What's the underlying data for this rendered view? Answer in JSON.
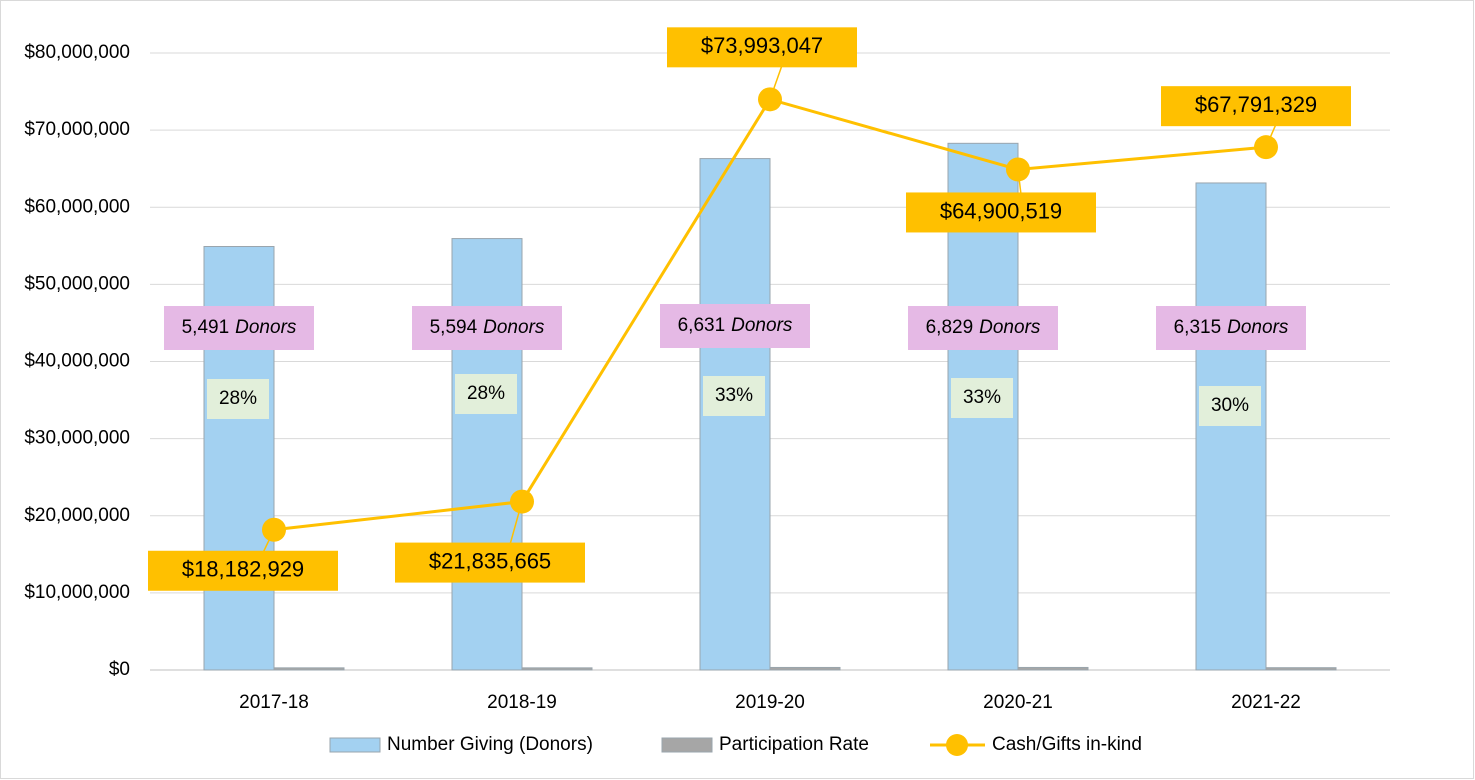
{
  "chart_data": {
    "type": "bar-line",
    "categories": [
      "2017-18",
      "2018-19",
      "2019-20",
      "2020-21",
      "2021-22"
    ],
    "series": [
      {
        "name": "Number Giving (Donors)",
        "type": "bar",
        "axis": "y2",
        "color": "#a3d1f1",
        "values": [
          5491,
          5594,
          6631,
          6829,
          6315
        ],
        "value_labels": [
          "5,491",
          "5,594",
          "6,631",
          "6,829",
          "6,315"
        ],
        "label_unit": "Donors"
      },
      {
        "name": "Participation Rate",
        "type": "bar",
        "axis": "y2",
        "color": "#a6a6a6",
        "values": [
          28,
          28,
          33,
          33,
          30
        ],
        "value_labels": [
          "28%",
          "28%",
          "33%",
          "33%",
          "30%"
        ]
      },
      {
        "name": "Cash/Gifts in-kind",
        "type": "line",
        "color": "#ffc000",
        "values": [
          18182929,
          21835665,
          73993047,
          64900519,
          67791329
        ],
        "value_labels": [
          "$18,182,929",
          "$21,835,665",
          "$73,993,047",
          "$64,900,519",
          "$67,791,329"
        ]
      }
    ],
    "ylim": [
      0,
      80000000
    ],
    "yticks": [
      {
        "value": 0,
        "label": "$0"
      },
      {
        "value": 10000000,
        "label": "$10,000,000"
      },
      {
        "value": 20000000,
        "label": "$20,000,000"
      },
      {
        "value": 30000000,
        "label": "$30,000,000"
      },
      {
        "value": 40000000,
        "label": "$40,000,000"
      },
      {
        "value": 50000000,
        "label": "$50,000,000"
      },
      {
        "value": 60000000,
        "label": "$60,000,000"
      },
      {
        "value": 70000000,
        "label": "$70,000,000"
      },
      {
        "value": 80000000,
        "label": "$80,000,000"
      }
    ],
    "y2lim": [
      0,
      8000
    ],
    "grid": true,
    "legend": "bottom"
  }
}
